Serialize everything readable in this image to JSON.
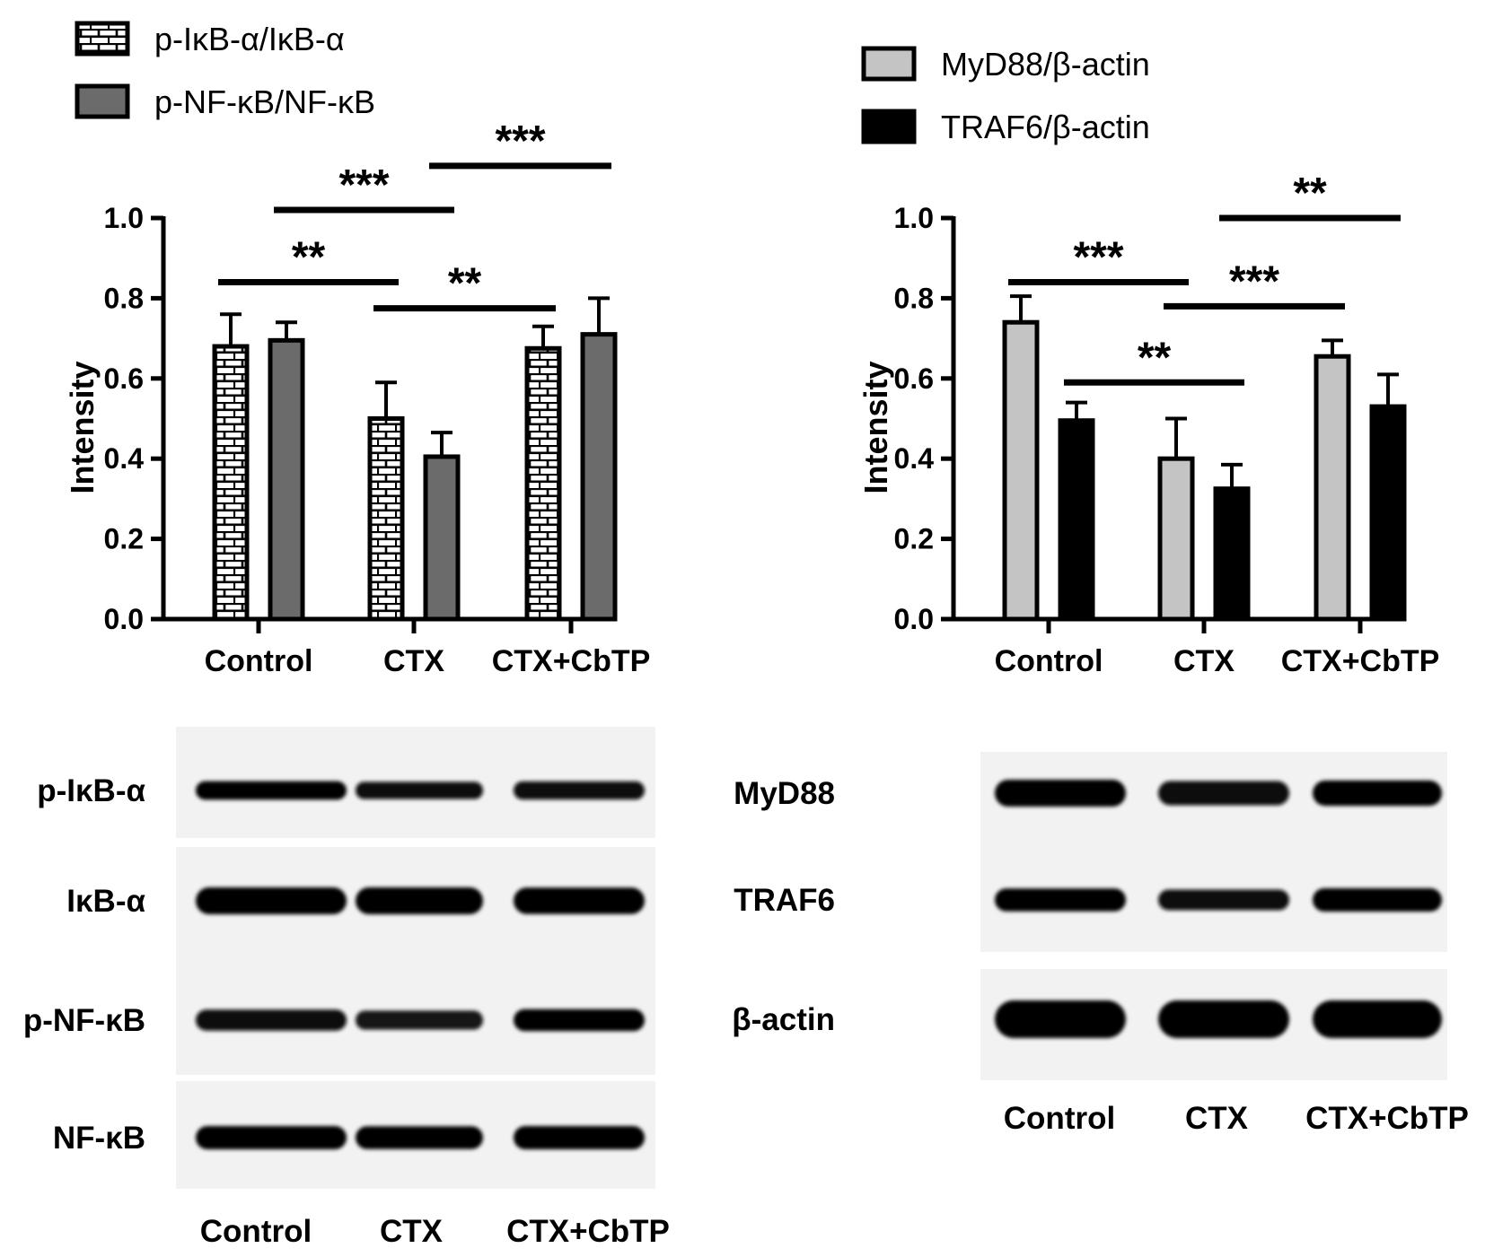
{
  "chart_data": [
    {
      "type": "bar",
      "xlabel": "",
      "ylabel": "Intensity",
      "ylim": [
        0,
        1.0
      ],
      "yticks": [
        "0.0",
        "0.2",
        "0.4",
        "0.6",
        "0.8",
        "1.0"
      ],
      "categories": [
        "Control",
        "CTX",
        "CTX+CbTP"
      ],
      "legend_position": "top-left",
      "series": [
        {
          "name": "p-IκB-α/IκB-α",
          "pattern": "brick",
          "color": "#ffffff",
          "values": [
            0.68,
            0.5,
            0.675
          ],
          "errors": [
            0.08,
            0.09,
            0.055
          ]
        },
        {
          "name": "p-NF-κB/NF-κB",
          "pattern": "solid",
          "color": "#6b6b6b",
          "values": [
            0.695,
            0.405,
            0.71
          ],
          "errors": [
            0.045,
            0.06,
            0.09
          ]
        }
      ],
      "annotations": [
        {
          "text": "**",
          "from": "Control",
          "to": "CTX",
          "y": 0.84
        },
        {
          "text": "***",
          "from": "Control",
          "to": "CTX",
          "y": 1.02
        },
        {
          "text": "**",
          "from": "CTX",
          "to": "CTX+CbTP",
          "y": 0.775
        },
        {
          "text": "***",
          "from": "CTX",
          "to": "CTX+CbTP",
          "y": 1.13
        }
      ]
    },
    {
      "type": "bar",
      "xlabel": "",
      "ylabel": "Intensity",
      "ylim": [
        0,
        1.0
      ],
      "yticks": [
        "0.0",
        "0.2",
        "0.4",
        "0.6",
        "0.8",
        "1.0"
      ],
      "categories": [
        "Control",
        "CTX",
        "CTX+CbTP"
      ],
      "legend_position": "top-left",
      "series": [
        {
          "name": "MyD88/β-actin",
          "pattern": "solid",
          "color": "#c4c4c4",
          "values": [
            0.74,
            0.4,
            0.655
          ],
          "errors": [
            0.065,
            0.1,
            0.04
          ]
        },
        {
          "name": "TRAF6/β-actin",
          "pattern": "solid",
          "color": "#000000",
          "values": [
            0.495,
            0.325,
            0.53
          ],
          "errors": [
            0.045,
            0.06,
            0.08
          ]
        }
      ],
      "annotations": [
        {
          "text": "***",
          "from": "Control",
          "to": "CTX",
          "y": 0.84
        },
        {
          "text": "***",
          "from": "CTX",
          "to": "CTX+CbTP",
          "y": 0.78
        },
        {
          "text": "**",
          "from": "Control",
          "to": "CTX",
          "y": 0.59
        },
        {
          "text": "**",
          "from": "CTX",
          "to": "CTX+CbTP",
          "y": 1.0
        }
      ]
    }
  ],
  "blots": [
    {
      "rows": [
        {
          "label": "p-IκB-α",
          "intensity": [
            0.85,
            0.7,
            0.8
          ]
        },
        {
          "label": "IκB-α",
          "intensity": [
            1.0,
            1.0,
            0.95
          ]
        },
        {
          "label": "p-NF-κB",
          "intensity": [
            0.75,
            0.55,
            0.85
          ]
        },
        {
          "label": "NF-κB",
          "intensity": [
            1.0,
            0.95,
            1.0
          ]
        }
      ],
      "lanes": [
        "Control",
        "CTX",
        "CTX+CbTP"
      ]
    },
    {
      "rows": [
        {
          "label": "MyD88",
          "intensity": [
            1.0,
            0.75,
            0.85
          ]
        },
        {
          "label": "TRAF6",
          "intensity": [
            0.95,
            0.7,
            1.0
          ]
        },
        {
          "label": "β-actin",
          "intensity": [
            1.0,
            1.0,
            1.0
          ]
        }
      ],
      "lanes": [
        "Control",
        "CTX",
        "CTX+CbTP"
      ]
    }
  ],
  "colors": {
    "background": "#ffffff",
    "ink": "#000000"
  }
}
